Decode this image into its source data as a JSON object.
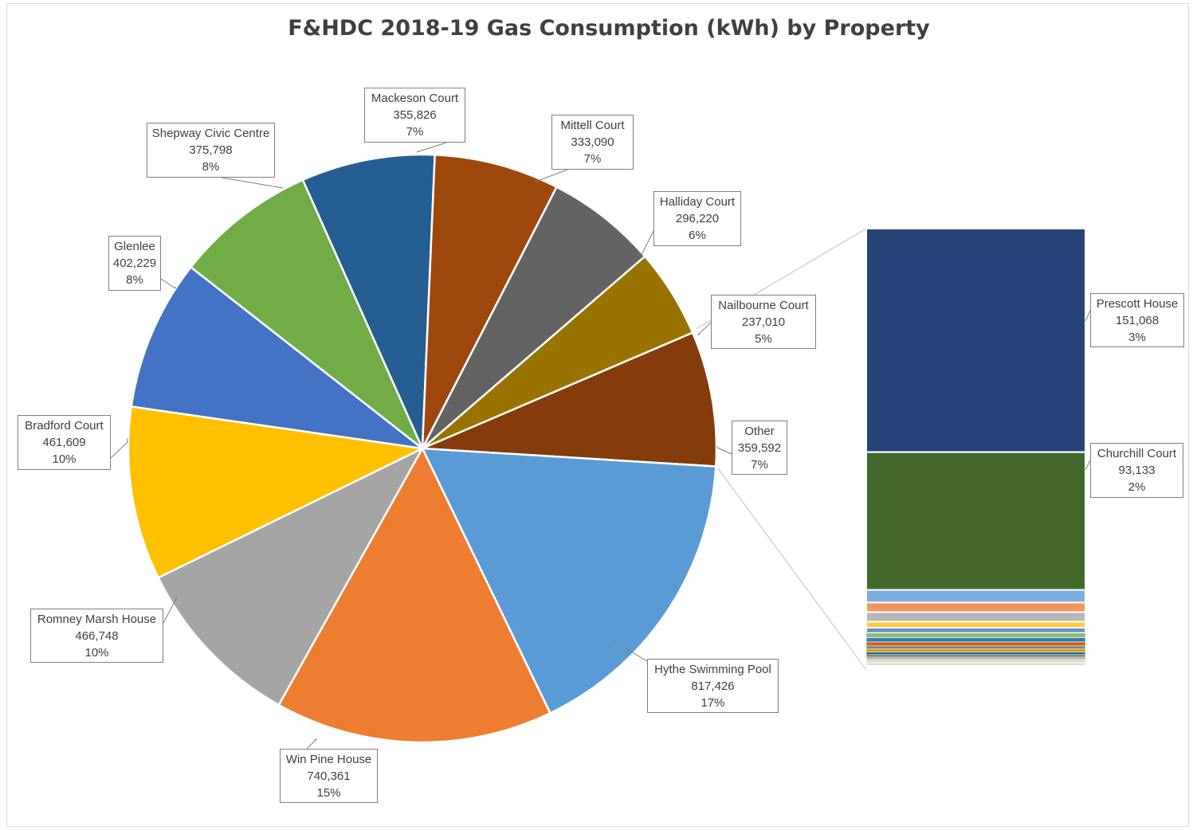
{
  "chart_data": {
    "type": "pie",
    "subtype": "bar-of-pie",
    "title": "F&HDC 2018-19 Gas Consumption (kWh) by Property",
    "slices": [
      {
        "name": "Mackeson Court",
        "value": 355826,
        "value_label": "355,826",
        "percent_label": "7%",
        "color": "#255e91"
      },
      {
        "name": "Mittell Court",
        "value": 333090,
        "value_label": "333,090",
        "percent_label": "7%",
        "color": "#9e480e"
      },
      {
        "name": "Halliday Court",
        "value": 296220,
        "value_label": "296,220",
        "percent_label": "6%",
        "color": "#636363"
      },
      {
        "name": "Nailbourne Court",
        "value": 237010,
        "value_label": "237,010",
        "percent_label": "5%",
        "color": "#997300"
      },
      {
        "name": "Other",
        "value": 359592,
        "value_label": "359,592",
        "percent_label": "7%",
        "color": "#843c0c"
      },
      {
        "name": "Hythe Swimming Pool",
        "value": 817426,
        "value_label": "817,426",
        "percent_label": "17%",
        "color": "#5b9bd5"
      },
      {
        "name": "Win Pine House",
        "value": 740361,
        "value_label": "740,361",
        "percent_label": "15%",
        "color": "#ed7d31"
      },
      {
        "name": "Romney Marsh House",
        "value": 466748,
        "value_label": "466,748",
        "percent_label": "10%",
        "color": "#a5a5a5"
      },
      {
        "name": "Bradford Court",
        "value": 461609,
        "value_label": "461,609",
        "percent_label": "10%",
        "color": "#ffc000"
      },
      {
        "name": "Glenlee",
        "value": 402229,
        "value_label": "402,229",
        "percent_label": "8%",
        "color": "#4472c4"
      },
      {
        "name": "Shepway Civic Centre",
        "value": 375798,
        "value_label": "375,798",
        "percent_label": "8%",
        "color": "#70ad47"
      }
    ],
    "other_breakdown": [
      {
        "name": "Prescott House",
        "value": 151068,
        "value_label": "151,068",
        "percent_label": "3%",
        "color": "#264478"
      },
      {
        "name": "Churchill Court",
        "value": 93133,
        "value_label": "93,133",
        "percent_label": "2%",
        "color": "#43682b"
      },
      {
        "value": 8500,
        "color": "#7cafdd"
      },
      {
        "value": 6500,
        "color": "#f1975a"
      },
      {
        "value": 6500,
        "color": "#b7b7b7"
      },
      {
        "value": 4000,
        "color": "#ffcd33"
      },
      {
        "value": 3600,
        "color": "#698ed0"
      },
      {
        "value": 3200,
        "color": "#8cc168"
      },
      {
        "value": 2900,
        "color": "#327dc2"
      },
      {
        "value": 2600,
        "color": "#d26012"
      },
      {
        "value": 2200,
        "color": "#848484"
      },
      {
        "value": 2000,
        "color": "#cc9a00"
      },
      {
        "value": 1800,
        "color": "#335aa1"
      },
      {
        "value": 1600,
        "color": "#5a8a39"
      },
      {
        "value": 1300,
        "color": "#8faadc"
      },
      {
        "value": 1100,
        "color": "#f4b183"
      },
      {
        "value": 900,
        "color": "#c9c9c9"
      },
      {
        "value": 800,
        "color": "#ffd966"
      },
      {
        "value": 700,
        "color": "#9dc3e6"
      },
      {
        "value": 600,
        "color": "#a9d18e"
      }
    ]
  }
}
